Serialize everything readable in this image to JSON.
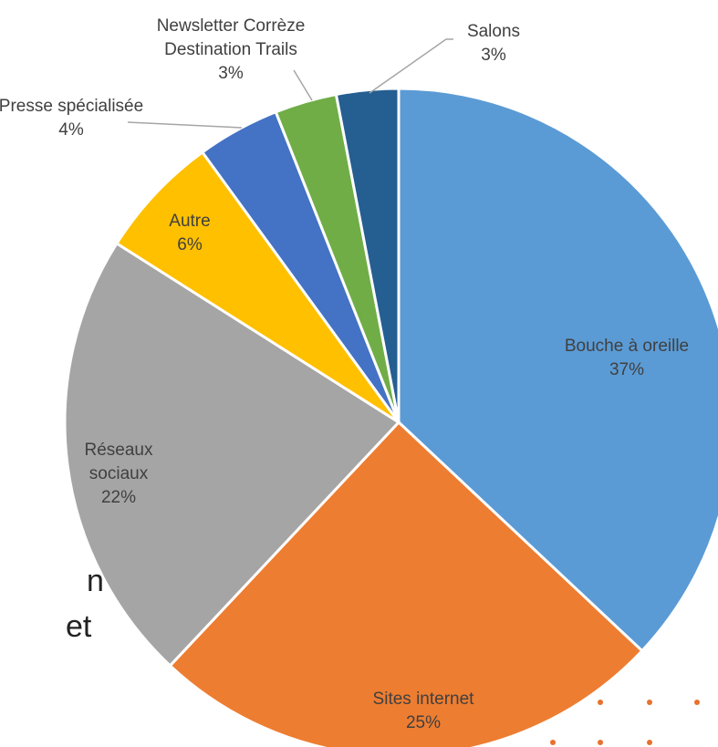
{
  "chart_data": {
    "type": "pie",
    "categories": [
      "Bouche à oreille",
      "Sites internet",
      "Réseaux sociaux",
      "Autre",
      "Presse spécialisée",
      "Newsletter Corrèze Destination Trails",
      "Salons"
    ],
    "values": [
      37,
      25,
      22,
      6,
      4,
      3,
      3
    ],
    "value_labels": [
      "37%",
      "25%",
      "22%",
      "6%",
      "4%",
      "3%",
      "3%"
    ],
    "colors": [
      "#5b9bd5",
      "#ed7d31",
      "#a5a5a5",
      "#ffc000",
      "#4472c4",
      "#70ad47",
      "#255e91"
    ]
  },
  "background_text": [
    "n",
    "et"
  ]
}
